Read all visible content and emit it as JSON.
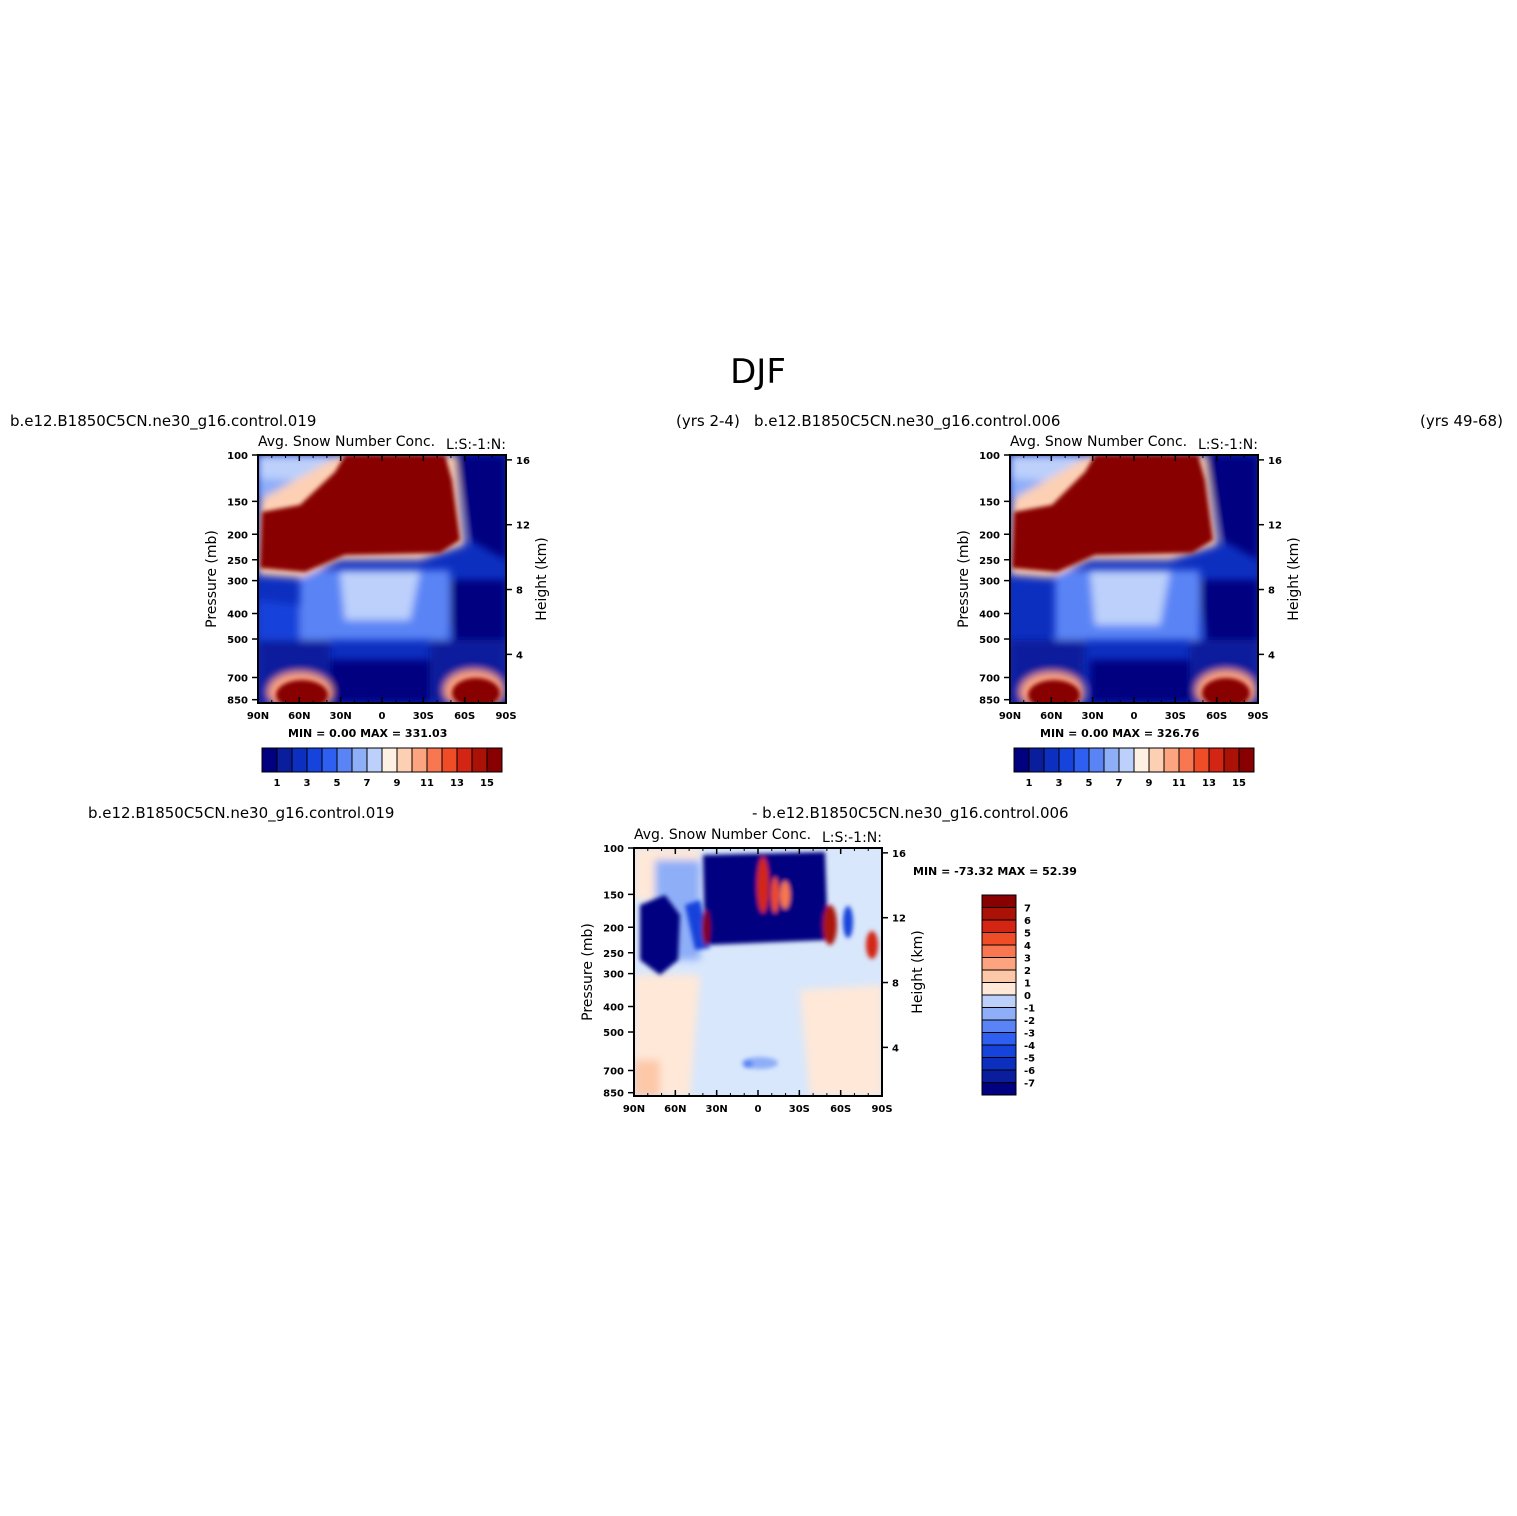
{
  "figure": {
    "title": "DJF"
  },
  "colors": {
    "abs_scale": [
      "#000080",
      "#0a1d9c",
      "#0d2fc0",
      "#1543db",
      "#2e5ff0",
      "#5a84f5",
      "#8eaef8",
      "#bcd0fb",
      "#deebfe",
      "#fff0e4",
      "#fdd0b4",
      "#fca380",
      "#f97750",
      "#ef4c28",
      "#d32513",
      "#aa1208",
      "#880000"
    ],
    "diff_scale": [
      "#000080",
      "#0a1d9c",
      "#0d2fc0",
      "#1543db",
      "#2e5ff0",
      "#5a84f5",
      "#8eaef8",
      "#bcd0fb",
      "#d8e7fc",
      "#ffe8d8",
      "#fdc8a8",
      "#fca380",
      "#f97750",
      "#ef4c28",
      "#d32513",
      "#aa1208",
      "#880000"
    ]
  },
  "chart_data": [
    {
      "type": "heatmap",
      "case_label": "b.e12.B1850C5CN.ne30_g16.control.019",
      "years_label": "(yrs 2-4)",
      "subtitle_left": "Avg. Snow Number Conc.",
      "subtitle_right": "L:S:-1:N:",
      "ylabel": "Pressure (mb)",
      "ylabel_right": "Height (km)",
      "x_ticks": [
        "90N",
        "60N",
        "30N",
        "0",
        "30S",
        "60S",
        "90S"
      ],
      "y_ticks": [
        "100",
        "150",
        "200",
        "250",
        "300",
        "400",
        "500",
        "700",
        "850"
      ],
      "y_ticks_right": [
        "16",
        "12",
        "8",
        "4"
      ],
      "min_label": "MIN =",
      "min_value": "0.00",
      "max_label": "MAX =",
      "max_value": "331.03",
      "colorbar_labels": [
        "1",
        "3",
        "5",
        "7",
        "9",
        "11",
        "13",
        "15"
      ]
    },
    {
      "type": "heatmap",
      "case_label": "b.e12.B1850C5CN.ne30_g16.control.006",
      "years_label": "(yrs 49-68)",
      "subtitle_left": "Avg. Snow Number Conc.",
      "subtitle_right": "L:S:-1:N:",
      "ylabel": "Pressure (mb)",
      "ylabel_right": "Height (km)",
      "x_ticks": [
        "90N",
        "60N",
        "30N",
        "0",
        "30S",
        "60S",
        "90S"
      ],
      "y_ticks": [
        "100",
        "150",
        "200",
        "250",
        "300",
        "400",
        "500",
        "700",
        "850"
      ],
      "y_ticks_right": [
        "16",
        "12",
        "8",
        "4"
      ],
      "min_label": "MIN =",
      "min_value": "0.00",
      "max_label": "MAX =",
      "max_value": "326.76",
      "colorbar_labels": [
        "1",
        "3",
        "5",
        "7",
        "9",
        "11",
        "13",
        "15"
      ]
    },
    {
      "type": "heatmap",
      "case_label_left": "b.e12.B1850C5CN.ne30_g16.control.019",
      "case_label_right": "- b.e12.B1850C5CN.ne30_g16.control.006",
      "subtitle_left": "Avg. Snow Number Conc.",
      "subtitle_right": "L:S:-1:N:",
      "ylabel": "Pressure (mb)",
      "ylabel_right": "Height (km)",
      "x_ticks": [
        "90N",
        "60N",
        "30N",
        "0",
        "30S",
        "60S",
        "90S"
      ],
      "y_ticks": [
        "100",
        "150",
        "200",
        "250",
        "300",
        "400",
        "500",
        "700",
        "850"
      ],
      "y_ticks_right": [
        "16",
        "12",
        "8",
        "4"
      ],
      "min_label": "MIN =",
      "min_value": "-73.32",
      "max_label": "MAX =",
      "max_value": "52.39",
      "colorbar_labels": [
        "7",
        "6",
        "5",
        "4",
        "3",
        "2",
        "1",
        "0",
        "-1",
        "-2",
        "-3",
        "-4",
        "-5",
        "-6",
        "-7"
      ]
    }
  ]
}
